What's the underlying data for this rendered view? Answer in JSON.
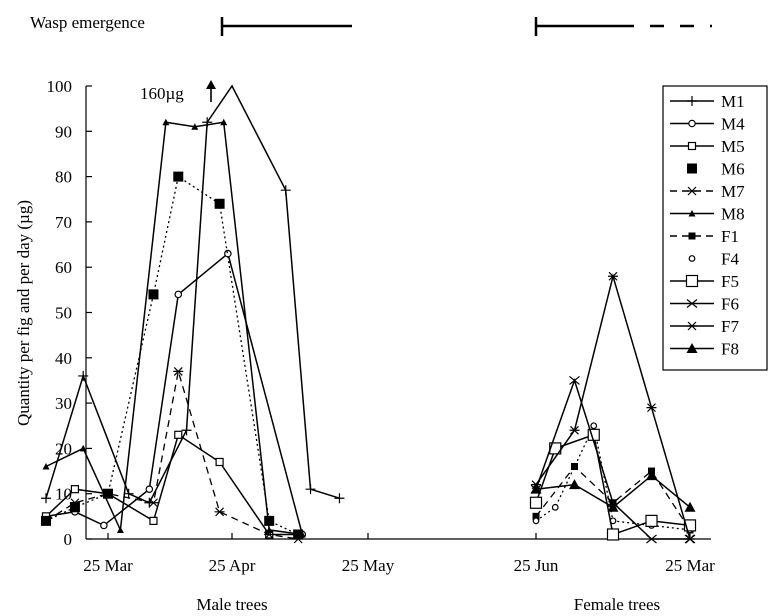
{
  "chart_data": {
    "type": "line",
    "title": "",
    "ylabel": "Quantity per fig and per day (µg)",
    "xlabel": "",
    "ylim": [
      0,
      100
    ],
    "yticks": [
      "0",
      "10",
      "20",
      "30",
      "40",
      "50",
      "60",
      "70",
      "80",
      "90",
      "100"
    ],
    "xticks": [
      "25 Mar",
      "25 Apr",
      "25 May",
      "25 Jun",
      "25 Mar"
    ],
    "group_labels": [
      "Male trees",
      "Female trees"
    ],
    "annotations": {
      "wasp_emergence": "Wasp emergence",
      "overflow_value": "160µg"
    },
    "legend_position": "right",
    "grid": false,
    "male_series": [
      {
        "name": "M1",
        "style": "solid",
        "marker": "plus",
        "points": [
          [
            -15,
            9
          ],
          [
            -6,
            36
          ],
          [
            5,
            10
          ],
          [
            10,
            8
          ],
          [
            19,
            24
          ],
          [
            24,
            92
          ],
          [
            30,
            100
          ],
          [
            30,
            100
          ],
          [
            43,
            77
          ],
          [
            49,
            11
          ],
          [
            56,
            9
          ]
        ]
      },
      {
        "name": "M4",
        "style": "solid",
        "marker": "open-circle",
        "points": [
          [
            -15,
            5
          ],
          [
            -8,
            6
          ],
          [
            -1,
            3
          ],
          [
            10,
            11
          ],
          [
            17,
            54
          ],
          [
            29,
            63
          ],
          [
            47,
            1
          ]
        ]
      },
      {
        "name": "M5",
        "style": "solid",
        "marker": "open-square",
        "points": [
          [
            -15,
            5
          ],
          [
            -8,
            11
          ],
          [
            0,
            10
          ],
          [
            11,
            4
          ],
          [
            17,
            23
          ],
          [
            27,
            17
          ],
          [
            39,
            1
          ],
          [
            46,
            1
          ]
        ]
      },
      {
        "name": "M6",
        "style": "dotted",
        "marker": "filled-square",
        "points": [
          [
            -15,
            4
          ],
          [
            -8,
            7
          ],
          [
            0,
            10
          ],
          [
            11,
            54
          ],
          [
            17,
            80
          ],
          [
            27,
            74
          ],
          [
            39,
            4
          ],
          [
            46,
            1
          ]
        ]
      },
      {
        "name": "M7",
        "style": "dashed",
        "marker": "star",
        "points": [
          [
            -15,
            4
          ],
          [
            -8,
            8
          ],
          [
            0,
            10
          ],
          [
            11,
            8
          ],
          [
            17,
            37
          ],
          [
            27,
            6
          ],
          [
            39,
            1
          ],
          [
            46,
            0
          ]
        ]
      },
      {
        "name": "M8",
        "style": "solid",
        "marker": "small-triangle",
        "points": [
          [
            -15,
            16
          ],
          [
            -6,
            20
          ],
          [
            3,
            2
          ],
          [
            14,
            92
          ],
          [
            21,
            91
          ],
          [
            28,
            92
          ],
          [
            39,
            2
          ],
          [
            47,
            1
          ]
        ]
      }
    ],
    "female_series": [
      {
        "name": "F1",
        "style": "dashed",
        "marker": "small-filled-square",
        "points": [
          [
            0,
            5
          ],
          [
            1,
            16
          ],
          [
            2,
            8
          ],
          [
            3,
            15
          ],
          [
            4,
            2
          ]
        ]
      },
      {
        "name": "F4",
        "style": "dotted",
        "marker": "small-open-circle",
        "points": [
          [
            0,
            4
          ],
          [
            0.5,
            7
          ],
          [
            1.5,
            25
          ],
          [
            2,
            4
          ],
          [
            3,
            3
          ],
          [
            4,
            2
          ]
        ]
      },
      {
        "name": "F5",
        "style": "solid",
        "marker": "large-open-square",
        "points": [
          [
            0,
            8
          ],
          [
            0.5,
            20
          ],
          [
            1.5,
            23
          ],
          [
            2,
            1
          ],
          [
            3,
            4
          ],
          [
            4,
            3
          ]
        ]
      },
      {
        "name": "F6",
        "style": "solid",
        "marker": "x",
        "points": [
          [
            0,
            11
          ],
          [
            1,
            35
          ],
          [
            2,
            8
          ],
          [
            3,
            0
          ],
          [
            4,
            0
          ]
        ]
      },
      {
        "name": "F7",
        "style": "solid",
        "marker": "star",
        "points": [
          [
            0,
            12
          ],
          [
            1,
            24
          ],
          [
            2,
            58
          ],
          [
            3,
            29
          ],
          [
            4,
            0
          ]
        ]
      },
      {
        "name": "F8",
        "style": "solid",
        "marker": "filled-triangle",
        "points": [
          [
            0,
            11
          ],
          [
            1,
            12
          ],
          [
            2,
            7
          ],
          [
            3,
            14
          ],
          [
            4,
            7
          ]
        ]
      }
    ]
  }
}
